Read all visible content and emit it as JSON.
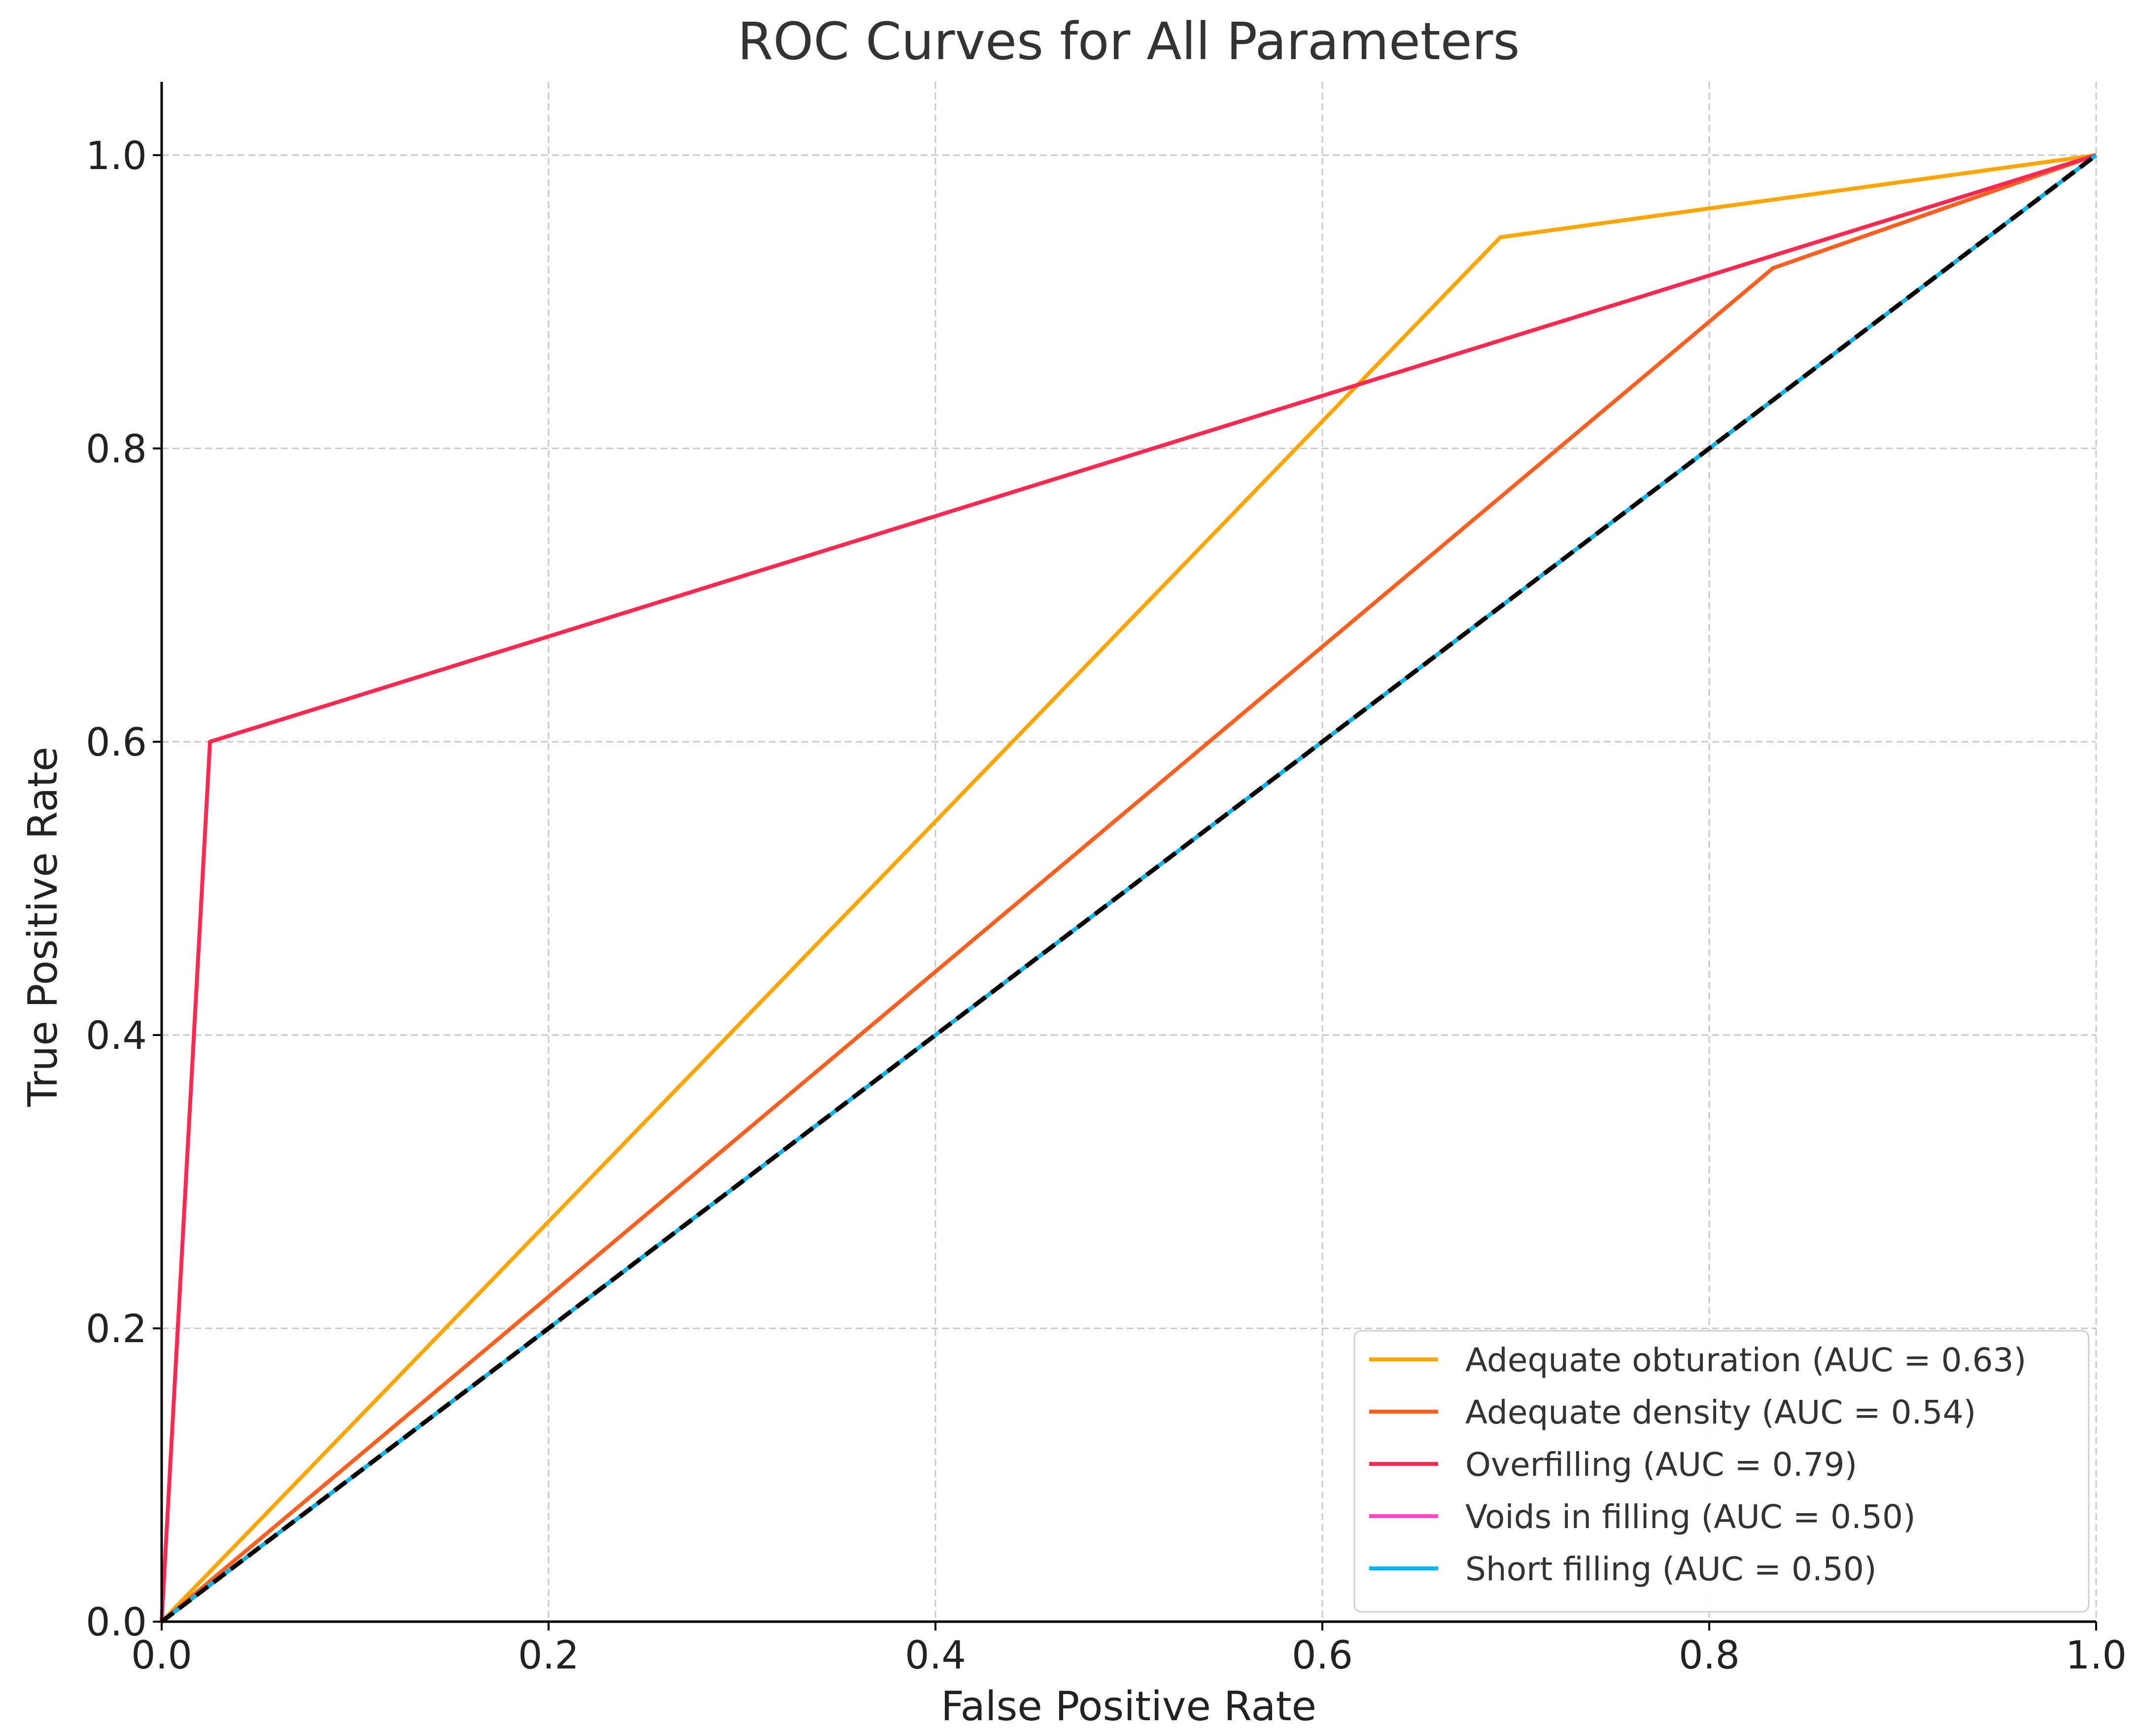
{
  "chart_data": {
    "type": "line",
    "title": "ROC Curves for All Parameters",
    "xlabel": "False Positive Rate",
    "ylabel": "True Positive Rate",
    "xlim": [
      0,
      1
    ],
    "ylim": [
      0,
      1.05
    ],
    "x_ticks": [
      "0.0",
      "0.2",
      "0.4",
      "0.6",
      "0.8",
      "1.0"
    ],
    "y_ticks": [
      "0.0",
      "0.2",
      "0.4",
      "0.6",
      "0.8",
      "1.0"
    ],
    "grid": true,
    "legend_position": "lower-right",
    "series": [
      {
        "name": "Adequate obturation (AUC = 0.63)",
        "color": "#FFA500",
        "x": [
          0,
          0.692,
          1
        ],
        "y": [
          0,
          0.944,
          1
        ]
      },
      {
        "name": "Adequate density (AUC = 0.54)",
        "color": "#FF5F1F",
        "x": [
          0,
          0.833,
          1
        ],
        "y": [
          0,
          0.923,
          1
        ]
      },
      {
        "name": "Overfilling (AUC = 0.79)",
        "color": "#FF2850",
        "x": [
          0,
          0.025,
          1
        ],
        "y": [
          0,
          0.6,
          1
        ]
      },
      {
        "name": "Voids in filling (AUC = 0.50)",
        "color": "#FF45C8",
        "x": [
          0,
          1
        ],
        "y": [
          0,
          1
        ]
      },
      {
        "name": "Short filling (AUC = 0.50)",
        "color": "#00B4F0",
        "x": [
          0,
          1
        ],
        "y": [
          0,
          1
        ]
      }
    ],
    "reference_line": {
      "color": "#000000",
      "style": "dashed",
      "x": [
        0,
        1
      ],
      "y": [
        0,
        1
      ]
    }
  }
}
